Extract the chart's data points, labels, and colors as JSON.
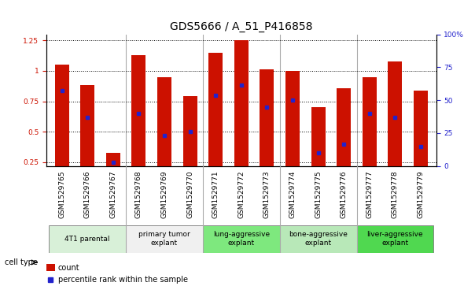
{
  "title": "GDS5666 / A_51_P416858",
  "samples": [
    "GSM1529765",
    "GSM1529766",
    "GSM1529767",
    "GSM1529768",
    "GSM1529769",
    "GSM1529770",
    "GSM1529771",
    "GSM1529772",
    "GSM1529773",
    "GSM1529774",
    "GSM1529775",
    "GSM1529776",
    "GSM1529777",
    "GSM1529778",
    "GSM1529779"
  ],
  "red_values": [
    1.05,
    0.88,
    0.33,
    1.13,
    0.95,
    0.79,
    1.15,
    1.25,
    1.01,
    1.0,
    0.7,
    0.86,
    0.95,
    1.08,
    0.84
  ],
  "blue_values": [
    0.84,
    0.62,
    0.25,
    0.65,
    0.47,
    0.5,
    0.8,
    0.88,
    0.7,
    0.76,
    0.33,
    0.4,
    0.65,
    0.62,
    0.38
  ],
  "cell_types": [
    {
      "label": "4T1 parental",
      "start": 0,
      "end": 2,
      "color": "#d8f0d8"
    },
    {
      "label": "primary tumor\nexplant",
      "start": 3,
      "end": 5,
      "color": "#f0f0f0"
    },
    {
      "label": "lung-aggressive\nexplant",
      "start": 6,
      "end": 8,
      "color": "#7ee87e"
    },
    {
      "label": "bone-aggressive\nexplant",
      "start": 9,
      "end": 11,
      "color": "#b8e8b8"
    },
    {
      "label": "liver-aggressive\nexplant",
      "start": 12,
      "end": 14,
      "color": "#50d850"
    }
  ],
  "group_separators": [
    2.5,
    5.5,
    8.5,
    11.5
  ],
  "ylim_left": [
    0.22,
    1.3
  ],
  "ylim_right": [
    0,
    100
  ],
  "bar_color": "#cc1100",
  "dot_color": "#2222cc",
  "background_color": "#ffffff",
  "title_fontsize": 10,
  "tick_fontsize": 6.5,
  "bar_width": 0.55
}
